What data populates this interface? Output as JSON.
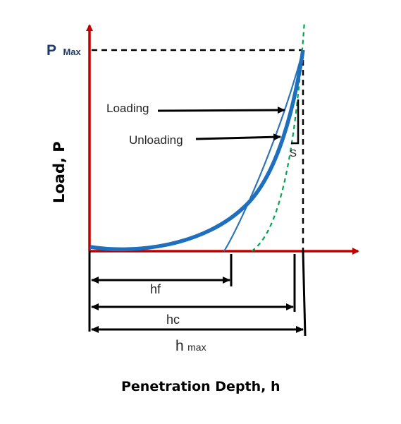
{
  "diagram": {
    "y_axis_label": "Load, P",
    "x_axis_label": "Penetration Depth, h",
    "pmax_label": {
      "main": "P",
      "sub": "Max"
    },
    "curve_labels": {
      "loading": "Loading",
      "unloading": "Unloading"
    },
    "stiffness_label": "S",
    "depth_labels": {
      "hf": "hf",
      "hc": "hc",
      "hmax": {
        "main": "h",
        "sub": "max"
      }
    },
    "colors": {
      "axis": "#c00000",
      "loading_curve": "#1f6fbf",
      "unloading_curve": "#2e75b6",
      "tangent": "#00a650",
      "text": "#262626",
      "pmax_text": "#1f3a6b"
    }
  }
}
